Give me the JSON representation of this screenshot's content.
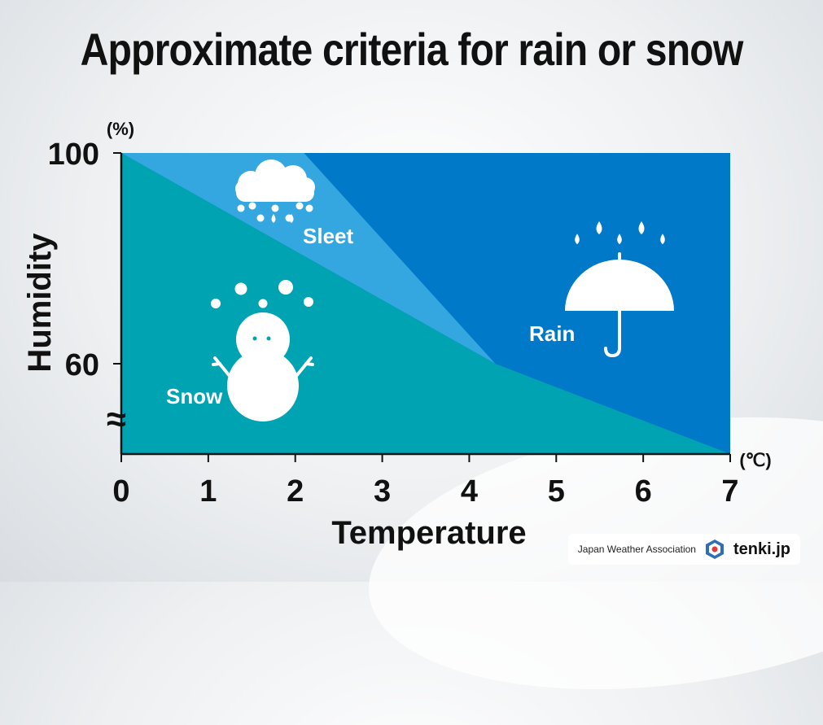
{
  "title": "Approximate criteria for rain or snow",
  "credit": {
    "organization": "Japan Weather Association",
    "logo_text": "tenki.jp"
  },
  "chart_data": {
    "type": "area",
    "title": "Approximate criteria for rain or snow",
    "xlabel": "Temperature",
    "ylabel": "Humidity",
    "x_unit": "(℃)",
    "y_unit": "(%)",
    "xlim": [
      0,
      7
    ],
    "ylim": [
      100,
      60
    ],
    "x_ticks": [
      "0",
      "1",
      "2",
      "3",
      "4",
      "5",
      "6",
      "7"
    ],
    "y_ticks": [
      "100",
      "60"
    ],
    "axis_break_symbol": "≈",
    "boundaries": {
      "snow_upper": [
        [
          0,
          100
        ],
        [
          4.3,
          60
        ],
        [
          7,
          42
        ]
      ],
      "sleet_upper": [
        [
          2.1,
          100
        ],
        [
          4.3,
          60
        ]
      ]
    },
    "regions": [
      {
        "name": "Snow",
        "color": "#00a3b1"
      },
      {
        "name": "Sleet",
        "color": "#34a6e0"
      },
      {
        "name": "Rain",
        "color": "#0079c8"
      }
    ],
    "icons": [
      "snowman-icon",
      "sleet-cloud-icon",
      "umbrella-icon"
    ],
    "grid": false
  }
}
